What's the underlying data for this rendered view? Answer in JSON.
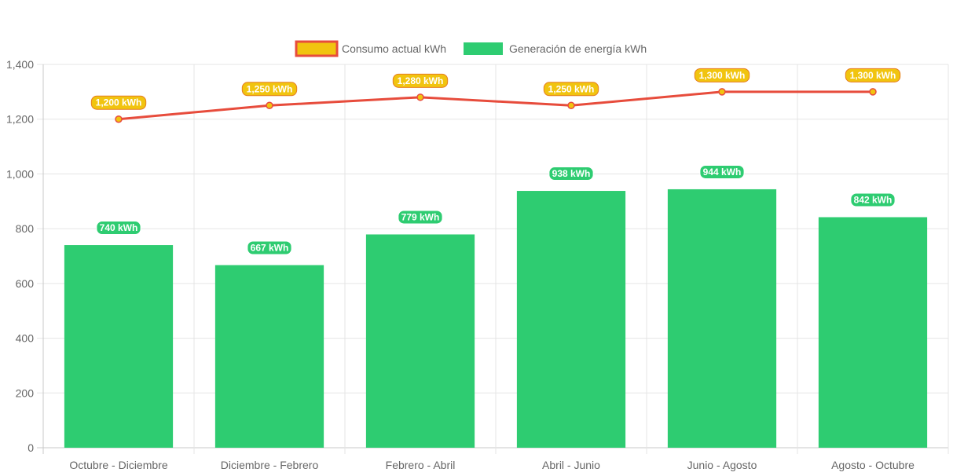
{
  "chart_data": {
    "type": "bar",
    "categories": [
      "Octubre - Diciembre",
      "Diciembre - Febrero",
      "Febrero - Abril",
      "Abril - Junio",
      "Junio - Agosto",
      "Agosto - Octubre"
    ],
    "series": [
      {
        "name": "Consumo actual kWh",
        "type": "line",
        "values": [
          1200,
          1250,
          1280,
          1250,
          1300,
          1300
        ],
        "labels": [
          "1,200 kWh",
          "1,250 kWh",
          "1,280 kWh",
          "1,250 kWh",
          "1,300 kWh",
          "1,300 kWh"
        ],
        "line_color": "#e74c3c",
        "point_color": "#f1c40f",
        "label_bg": "#f1c40f",
        "label_border": "#e67e22"
      },
      {
        "name": "Generación de energía kWh",
        "type": "bar",
        "values": [
          740,
          667,
          779,
          938,
          944,
          842
        ],
        "labels": [
          "740 kWh",
          "667 kWh",
          "779 kWh",
          "938 kWh",
          "944 kWh",
          "842 kWh"
        ],
        "color": "#2ecc71"
      }
    ],
    "yticks": [
      "0",
      "200",
      "400",
      "600",
      "800",
      "1,000",
      "1,200",
      "1,400"
    ],
    "ylim": [
      0,
      1400
    ],
    "grid": true,
    "legend_position": "top"
  }
}
